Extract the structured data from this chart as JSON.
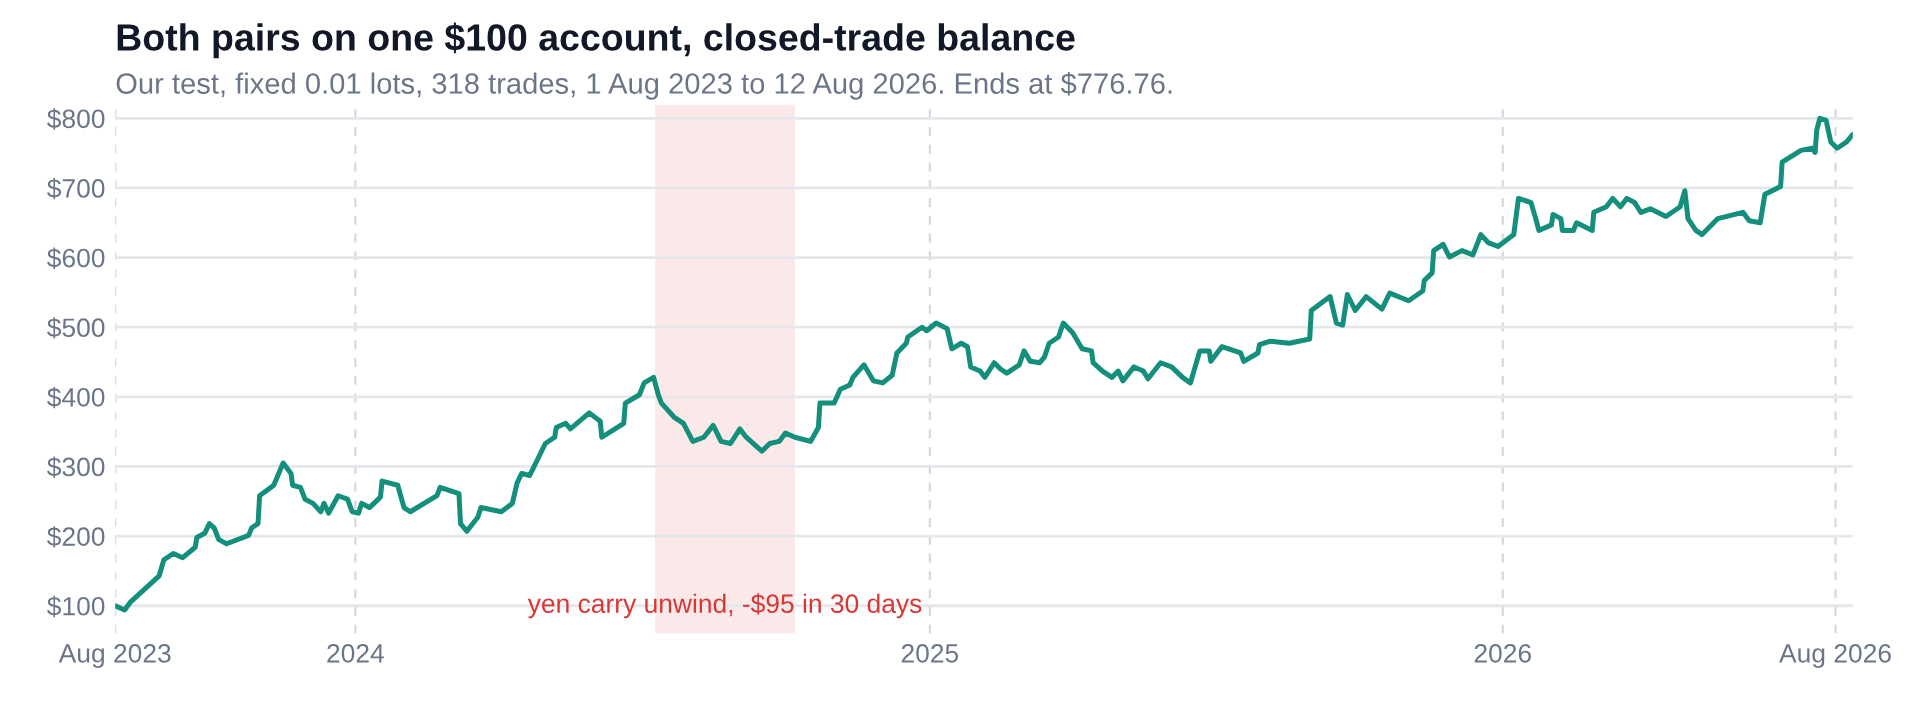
{
  "chart_data": {
    "type": "line",
    "title": "Both pairs on one $100 account, closed-trade balance",
    "subtitle": "Our test, fixed 0.01 lots, 318 trades, 1 Aug 2023 to 12 Aug 2026. Ends at $776.76.",
    "x": [
      "2023-08-01",
      "2023-08-07",
      "2023-08-11",
      "2023-08-29",
      "2023-09-01",
      "2023-09-07",
      "2023-09-13",
      "2023-09-21",
      "2023-09-22",
      "2023-09-27",
      "2023-09-30",
      "2023-10-03",
      "2023-10-06",
      "2023-10-11",
      "2023-10-25",
      "2023-10-27",
      "2023-10-31",
      "2023-11-01",
      "2023-11-10",
      "2023-11-16",
      "2023-11-21",
      "2023-11-22",
      "2023-11-27",
      "2023-11-30",
      "2023-12-05",
      "2023-12-10",
      "2023-12-12",
      "2023-12-15",
      "2023-12-21",
      "2023-12-27",
      "2023-12-30",
      "2024-01-03",
      "2024-01-05",
      "2024-01-10",
      "2024-01-17",
      "2024-01-18",
      "2024-01-28",
      "2024-02-01",
      "2024-02-05",
      "2024-02-22",
      "2024-02-24",
      "2024-03-07",
      "2024-03-08",
      "2024-03-12",
      "2024-03-19",
      "2024-03-21",
      "2024-04-03",
      "2024-04-10",
      "2024-04-13",
      "2024-04-16",
      "2024-04-21",
      "2024-04-28",
      "2024-05-01",
      "2024-05-07",
      "2024-05-08",
      "2024-05-14",
      "2024-05-17",
      "2024-05-29",
      "2024-06-05",
      "2024-06-06",
      "2024-06-20",
      "2024-06-21",
      "2024-06-30",
      "2024-07-03",
      "2024-07-09",
      "2024-07-12",
      "2024-07-14",
      "2024-07-22",
      "2024-07-28",
      "2024-08-03",
      "2024-08-10",
      "2024-08-16",
      "2024-08-21",
      "2024-08-27",
      "2024-09-02",
      "2024-09-06",
      "2024-09-12",
      "2024-09-16",
      "2024-09-21",
      "2024-09-27",
      "2024-10-01",
      "2024-10-07",
      "2024-10-17",
      "2024-10-22",
      "2024-10-23",
      "2024-11-01",
      "2024-11-05",
      "2024-11-11",
      "2024-11-13",
      "2024-11-20",
      "2024-11-26",
      "2024-12-02",
      "2024-12-08",
      "2024-12-11",
      "2024-12-17",
      "2024-12-18",
      "2024-12-27",
      "2024-12-30",
      "2025-01-05",
      "2025-01-12",
      "2025-01-15",
      "2025-01-21",
      "2025-01-25",
      "2025-01-27",
      "2025-02-02",
      "2025-02-05",
      "2025-02-11",
      "2025-02-15",
      "2025-02-19",
      "2025-02-27",
      "2025-03-02",
      "2025-03-06",
      "2025-03-12",
      "2025-03-15",
      "2025-03-18",
      "2025-03-24",
      "2025-03-27",
      "2025-04-02",
      "2025-04-08",
      "2025-04-14",
      "2025-04-15",
      "2025-04-21",
      "2025-04-27",
      "2025-05-01",
      "2025-05-04",
      "2025-05-11",
      "2025-05-17",
      "2025-05-20",
      "2025-05-28",
      "2025-06-04",
      "2025-06-11",
      "2025-06-16",
      "2025-06-22",
      "2025-06-28",
      "2025-06-29",
      "2025-07-06",
      "2025-07-18",
      "2025-07-20",
      "2025-07-29",
      "2025-07-30",
      "2025-08-06",
      "2025-08-18",
      "2025-08-31",
      "2025-09-01",
      "2025-09-13",
      "2025-09-17",
      "2025-09-21",
      "2025-09-24",
      "2025-09-29",
      "2025-10-06",
      "2025-10-16",
      "2025-10-21",
      "2025-11-02",
      "2025-11-11",
      "2025-11-12",
      "2025-11-17",
      "2025-11-18",
      "2025-11-24",
      "2025-11-28",
      "2025-12-06",
      "2025-12-13",
      "2025-12-18",
      "2025-12-23",
      "2025-12-29",
      "2026-01-08",
      "2026-01-11",
      "2026-01-19",
      "2026-01-22",
      "2026-01-24",
      "2026-02-01",
      "2026-02-02",
      "2026-02-07",
      "2026-02-08",
      "2026-02-15",
      "2026-02-17",
      "2026-02-27",
      "2026-02-28",
      "2026-03-08",
      "2026-03-12",
      "2026-03-17",
      "2026-03-21",
      "2026-03-26",
      "2026-03-30",
      "2026-04-05",
      "2026-04-15",
      "2026-04-24",
      "2026-04-27",
      "2026-04-29",
      "2026-05-04",
      "2026-05-08",
      "2026-05-18",
      "2026-06-03",
      "2026-06-07",
      "2026-06-14",
      "2026-06-17",
      "2026-06-27",
      "2026-06-28",
      "2026-07-10",
      "2026-07-17",
      "2026-07-19",
      "2026-07-20",
      "2026-07-22",
      "2026-07-26",
      "2026-07-29",
      "2026-08-02",
      "2026-08-08",
      "2026-08-12"
    ],
    "series": [
      {
        "color": "#138f7c",
        "values": [
          100,
          94,
          106,
          143,
          166,
          175,
          169,
          184,
          198,
          204,
          218,
          212,
          195,
          189,
          201,
          212,
          218,
          258,
          273,
          305,
          290,
          273,
          270,
          253,
          247,
          235,
          247,
          233,
          258,
          253,
          235,
          233,
          247,
          241,
          256,
          279,
          273,
          241,
          235,
          258,
          270,
          261,
          218,
          207,
          227,
          241,
          235,
          247,
          276,
          290,
          287,
          319,
          333,
          342,
          356,
          362,
          354,
          377,
          365,
          342,
          362,
          391,
          403,
          420,
          428,
          403,
          391,
          371,
          362,
          336,
          342,
          359,
          336,
          333,
          354,
          342,
          330,
          322,
          333,
          336,
          348,
          342,
          336,
          356,
          391,
          391,
          411,
          417,
          428,
          446,
          423,
          420,
          431,
          463,
          477,
          486,
          500,
          495,
          506,
          498,
          469,
          477,
          472,
          443,
          437,
          428,
          449,
          440,
          434,
          446,
          466,
          451,
          449,
          457,
          477,
          486,
          506,
          492,
          469,
          466,
          449,
          437,
          428,
          437,
          423,
          443,
          437,
          426,
          449,
          443,
          428,
          420,
          466,
          466,
          451,
          472,
          463,
          451,
          463,
          475,
          480,
          477,
          483,
          524,
          544,
          506,
          503,
          547,
          524,
          544,
          526,
          549,
          538,
          552,
          567,
          578,
          610,
          619,
          601,
          610,
          604,
          633,
          621,
          616,
          633,
          685,
          679,
          656,
          639,
          647,
          662,
          656,
          639,
          639,
          650,
          639,
          665,
          673,
          685,
          673,
          685,
          679,
          665,
          670,
          659,
          673,
          696,
          656,
          639,
          633,
          656,
          665,
          653,
          650,
          691,
          702,
          737,
          754,
          757,
          751,
          783,
          800,
          797,
          766,
          757,
          766,
          777
        ]
      }
    ],
    "xlim": [
      "2023-08-01",
      "2026-08-12"
    ],
    "xticks": [
      {
        "value": "2023-08-01",
        "label": "Aug 2023"
      },
      {
        "value": "2024-01-01",
        "label": "2024"
      },
      {
        "value": "2025-01-01",
        "label": "2025"
      },
      {
        "value": "2026-01-01",
        "label": "2026"
      },
      {
        "value": "2026-08-01",
        "label": "Aug 2026"
      }
    ],
    "ylim": [
      60,
      820
    ],
    "yticks": [
      {
        "value": 100,
        "label": "$100"
      },
      {
        "value": 200,
        "label": "$200"
      },
      {
        "value": 300,
        "label": "$300"
      },
      {
        "value": 400,
        "label": "$400"
      },
      {
        "value": 500,
        "label": "$500"
      },
      {
        "value": 600,
        "label": "$600"
      },
      {
        "value": 700,
        "label": "$700"
      },
      {
        "value": 800,
        "label": "$800"
      }
    ],
    "bands": [
      {
        "axis": "x",
        "from": "2024-07-10",
        "to": "2024-10-07",
        "label": "yen carry unwind, -$95 in 30 days",
        "color": "#fbe9e9"
      }
    ],
    "grid": true,
    "line_style": "solid",
    "marker": "none"
  }
}
